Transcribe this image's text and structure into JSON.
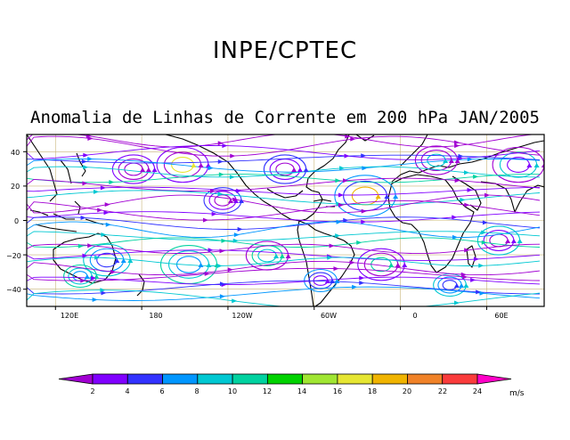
{
  "header": {
    "title": "INPE/CPTEC"
  },
  "map": {
    "title": "Anomalia de Linhas de Corrente em 200 hPa JAN/2005",
    "lon_labels": [
      "120E",
      "180",
      "120W",
      "60W",
      "0",
      "60E"
    ],
    "lat_labels": [
      "40",
      "20",
      "0",
      "−20",
      "−40"
    ],
    "lat_range": [
      -50,
      50
    ],
    "lon_range": [
      100,
      460
    ],
    "grid": true
  },
  "colorbar": {
    "unit": "m/s",
    "labels": [
      "2",
      "4",
      "6",
      "8",
      "10",
      "12",
      "14",
      "16",
      "18",
      "20",
      "22",
      "24"
    ],
    "colors": [
      "#a100d2",
      "#8000ff",
      "#3232ff",
      "#0096ff",
      "#00c8d2",
      "#00d2a0",
      "#00d200",
      "#a0e632",
      "#e6e632",
      "#f0b400",
      "#f08228",
      "#fa3c3c",
      "#ff00c8"
    ]
  }
}
